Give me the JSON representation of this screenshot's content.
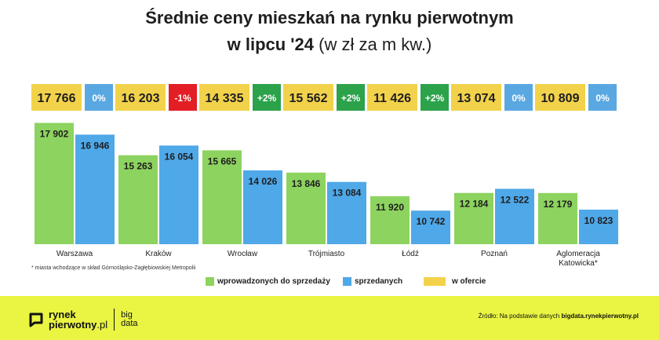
{
  "title": {
    "line1": "Średnie ceny mieszkań na rynku pierwotnym",
    "line2_bold": "w lipcu '24",
    "line2_normal": "(w zł za m kw.)"
  },
  "chart_data": {
    "type": "bar",
    "categories": [
      "Warszawa",
      "Kraków",
      "Wrocław",
      "Trójmiasto",
      "Łódź",
      "Poznań",
      "Aglomeracja Katowicka*"
    ],
    "series": [
      {
        "name": "wprowadzonych do sprzedaży",
        "color": "#8dd35f",
        "values": [
          17902,
          15263,
          15665,
          13846,
          11920,
          12184,
          12179
        ],
        "labels": [
          "17 902",
          "15 263",
          "15 665",
          "13 846",
          "11 920",
          "12 184",
          "12 179"
        ]
      },
      {
        "name": "sprzedanych",
        "color": "#4fa8e8",
        "values": [
          16946,
          16054,
          14026,
          13084,
          10742,
          12522,
          10823
        ],
        "labels": [
          "16 946",
          "16 054",
          "14 026",
          "13 084",
          "10 742",
          "12 522",
          "10 823"
        ]
      }
    ],
    "offer": {
      "name": "w ofercie",
      "color": "#f2d24b",
      "values": [
        17766,
        16203,
        14335,
        15562,
        11426,
        13074,
        10809
      ],
      "labels": [
        "17 766",
        "16 203",
        "14 335",
        "15 562",
        "11 426",
        "13 074",
        "10 809"
      ],
      "changes": [
        "0%",
        "-1%",
        "+2%",
        "+2%",
        "+2%",
        "0%",
        "0%"
      ],
      "change_colors": [
        "#5aa8e2",
        "#e31e24",
        "#2ca24b",
        "#2ca24b",
        "#2ca24b",
        "#5aa8e2",
        "#5aa8e2"
      ]
    },
    "ylim": [
      8000,
      18000
    ],
    "grid": false
  },
  "category_lines": [
    [
      "Warszawa"
    ],
    [
      "Kraków"
    ],
    [
      "Wrocław"
    ],
    [
      "Trójmiasto"
    ],
    [
      "Łódź"
    ],
    [
      "Poznań"
    ],
    [
      "Aglomeracja",
      "Katowicka*"
    ]
  ],
  "note": "* miasta wchodzące w skład Górnośląsko-Zagłębiowskiej Metropolii",
  "legend": {
    "green": "wprowadzonych do sprzedaży",
    "blue": "sprzedanych",
    "yellow": "w ofercie"
  },
  "footer": {
    "logo_line1": "rynek",
    "logo_line2": "pierwotny",
    "logo_suffix": ".pl",
    "logo2_line1": "big",
    "logo2_line2": "data",
    "source_prefix": "Źródło: Na podstawie danych",
    "source_link": "bigdata.rynekpierwotny.pl"
  }
}
